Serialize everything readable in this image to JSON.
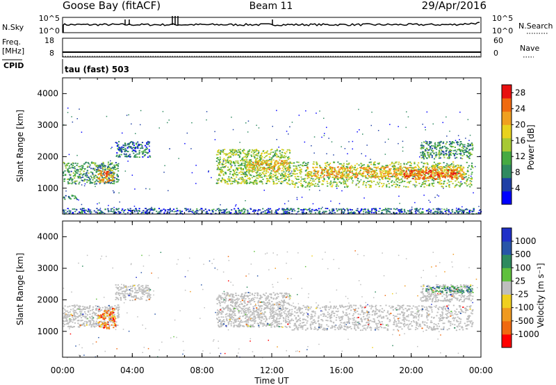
{
  "header": {
    "station": "Goose Bay (fitACF)",
    "beam": "Beam 11",
    "date": "29/Apr/2016"
  },
  "panels": {
    "nsky": {
      "left_label": "N.Sky",
      "right_label": "N.Search",
      "left_ticks": [
        "10^5",
        "10^0"
      ],
      "right_ticks": [
        "10^5",
        "10^0"
      ]
    },
    "freq": {
      "left_label_1": "Freq.",
      "left_label_2": "[MHz]",
      "right_label": "Nave",
      "left_ticks": [
        "18",
        "8"
      ],
      "right_ticks": [
        "60",
        "0"
      ]
    },
    "cpid": {
      "label": "CPID",
      "value": "tau (fast) 503"
    }
  },
  "colors": {
    "power_scale": [
      "#0000ff",
      "#1e3fa5",
      "#2f8a60",
      "#46aa42",
      "#a7c934",
      "#e8d21e",
      "#f0a020",
      "#f06a10",
      "#e81010"
    ],
    "velocity_scale": [
      "#ff0000",
      "#f06a10",
      "#f09a20",
      "#f0d020",
      "#bebebe",
      "#5fc03c",
      "#2e8a5e",
      "#2855a8",
      "#2030c8"
    ],
    "ground_scatter": "#bebebe"
  },
  "chart_data": [
    {
      "type": "heatmap",
      "name": "power",
      "xlabel": "",
      "ylabel": "Slant Range [km]",
      "x_ticks": [
        "00:00",
        "04:00",
        "08:00",
        "12:00",
        "16:00",
        "20:00",
        "00:00"
      ],
      "xlim": [
        0,
        24
      ],
      "y_ticks": [
        "1000",
        "2000",
        "3000",
        "4000"
      ],
      "ylim": [
        180,
        4500
      ],
      "colorbar": {
        "label": "Power [dB]",
        "ticks": [
          "4",
          "8",
          "12",
          "16",
          "20",
          "24",
          "28"
        ],
        "range": [
          0,
          30
        ]
      },
      "echo_regions": [
        {
          "t": [
            0.0,
            3.2
          ],
          "r": [
            1150,
            1850
          ],
          "level": 10
        },
        {
          "t": [
            2.0,
            2.9
          ],
          "r": [
            1200,
            1650
          ],
          "level": 22
        },
        {
          "t": [
            2.3,
            2.6
          ],
          "r": [
            1400,
            1550
          ],
          "level": 29
        },
        {
          "t": [
            0.0,
            0.8
          ],
          "r": [
            650,
            800
          ],
          "level": 8
        },
        {
          "t": [
            3.0,
            5.0
          ],
          "r": [
            2000,
            2500
          ],
          "level": 7
        },
        {
          "t": [
            8.8,
            13.0
          ],
          "r": [
            1150,
            2250
          ],
          "level": 14
        },
        {
          "t": [
            10.5,
            13.0
          ],
          "r": [
            1550,
            1900
          ],
          "level": 20
        },
        {
          "t": [
            13.0,
            23.5
          ],
          "r": [
            1050,
            1850
          ],
          "level": 14
        },
        {
          "t": [
            14.0,
            23.0
          ],
          "r": [
            1350,
            1700
          ],
          "level": 21
        },
        {
          "t": [
            19.5,
            23.0
          ],
          "r": [
            1300,
            1600
          ],
          "level": 25
        },
        {
          "t": [
            20.5,
            23.5
          ],
          "r": [
            1950,
            2500
          ],
          "level": 10
        },
        {
          "t": [
            0.0,
            24.0
          ],
          "r": [
            200,
            380
          ],
          "level": 6
        }
      ]
    },
    {
      "type": "heatmap",
      "name": "velocity",
      "xlabel": "Time UT",
      "ylabel": "Slant Range [km]",
      "x_ticks": [
        "00:00",
        "04:00",
        "08:00",
        "12:00",
        "16:00",
        "20:00",
        "00:00"
      ],
      "xlim": [
        0,
        24
      ],
      "y_ticks": [
        "1000",
        "2000",
        "3000",
        "4000"
      ],
      "ylim": [
        180,
        4500
      ],
      "colorbar": {
        "label": "Velocity [m s⁻¹]",
        "ticks": [
          "1000",
          "500",
          "100",
          "25",
          "-25",
          "-100",
          "-500",
          "-1000"
        ]
      },
      "echo_regions": [
        {
          "t": [
            0.0,
            3.2
          ],
          "r": [
            1150,
            1850
          ],
          "class": "ground"
        },
        {
          "t": [
            2.0,
            3.0
          ],
          "r": [
            1100,
            1750
          ],
          "class": "negative"
        },
        {
          "t": [
            3.0,
            5.0
          ],
          "r": [
            2000,
            2500
          ],
          "class": "ground"
        },
        {
          "t": [
            8.8,
            13.0
          ],
          "r": [
            1150,
            2250
          ],
          "class": "ground"
        },
        {
          "t": [
            13.0,
            23.5
          ],
          "r": [
            1050,
            1850
          ],
          "class": "ground"
        },
        {
          "t": [
            20.5,
            23.5
          ],
          "r": [
            1950,
            2500
          ],
          "class": "ground"
        },
        {
          "t": [
            20.8,
            23.5
          ],
          "r": [
            2250,
            2450
          ],
          "class": "positive"
        }
      ]
    }
  ]
}
